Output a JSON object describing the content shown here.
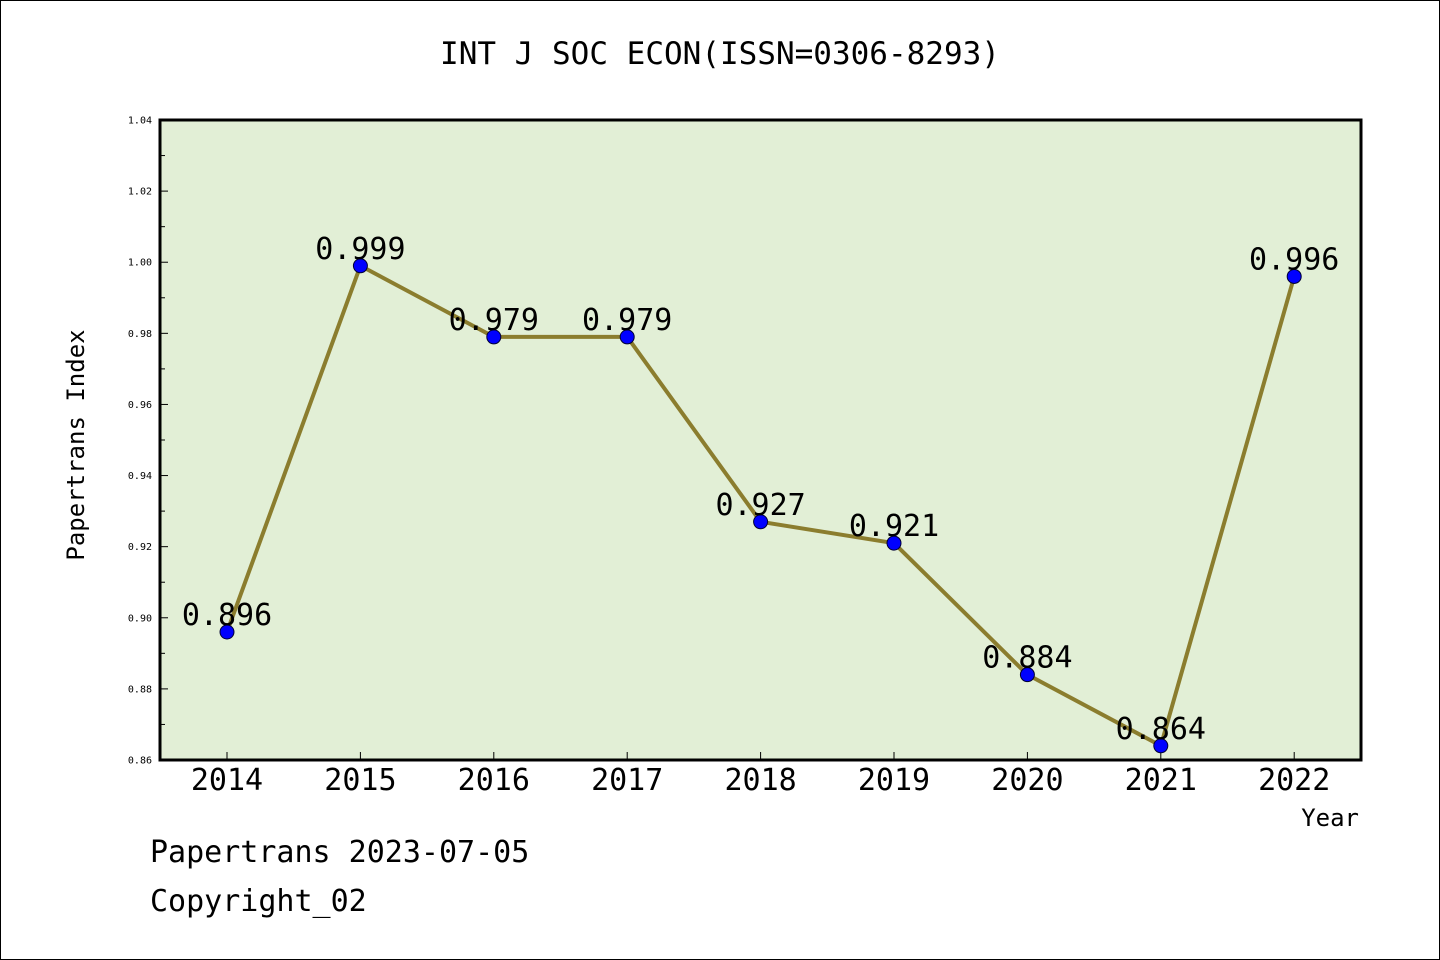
{
  "chart_data": {
    "type": "line",
    "title": "INT J SOC ECON(ISSN=0306-8293)",
    "xlabel": "Year",
    "ylabel": "Papertrans Index",
    "categories": [
      "2014",
      "2015",
      "2016",
      "2017",
      "2018",
      "2019",
      "2020",
      "2021",
      "2022"
    ],
    "series": [
      {
        "values": [
          0.896,
          0.999,
          0.979,
          0.979,
          0.927,
          0.921,
          0.884,
          0.864,
          0.996
        ],
        "data_labels": [
          "0.896",
          "0.999",
          "0.979",
          "0.979",
          "0.927",
          "0.921",
          "0.884",
          "0.864",
          "0.996"
        ]
      }
    ],
    "ylim": [
      0.86,
      1.04
    ],
    "yticks": [
      "0.86",
      "0.88",
      "0.90",
      "0.92",
      "0.94",
      "0.96",
      "0.98",
      "1.00",
      "1.02",
      "1.04"
    ],
    "grid": false,
    "legend": "none",
    "colors": {
      "plot_background": "#e2efd6",
      "line": "#8b7d2e",
      "marker": "#0000ff"
    }
  },
  "footer": {
    "line1": "Papertrans 2023-07-05",
    "line2": "Copyright_02"
  }
}
